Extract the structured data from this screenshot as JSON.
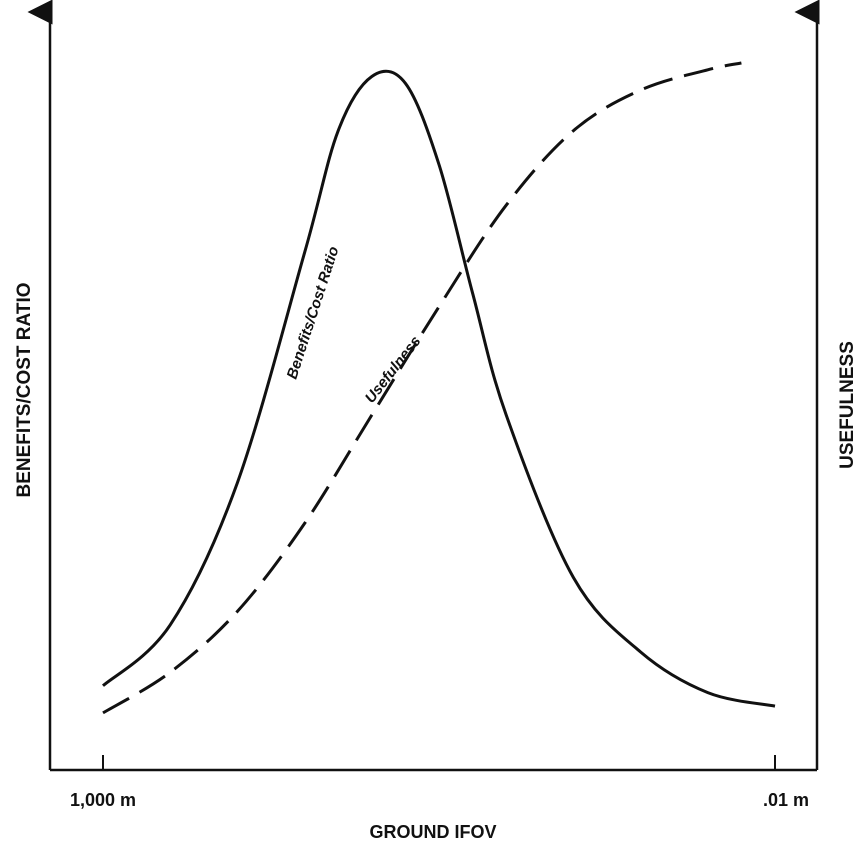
{
  "chart_data": {
    "type": "line",
    "xlabel": "GROUND IFOV",
    "ylabel_left": "BENEFITS/COST RATIO",
    "ylabel_right": "USEFULNESS",
    "x_ticks": [
      "1,000 m",
      ".01 m"
    ],
    "x_scale": "log",
    "x_direction": "decreasing",
    "xlim": [
      "1,000 m",
      ".01 m"
    ],
    "grid": false,
    "legend": "none",
    "units_note": "relative, unlabeled axes (0–1 scale of full axis height)",
    "series": [
      {
        "name": "Benefits/Cost Ratio",
        "style": "solid",
        "x_fraction": [
          0.0,
          0.1,
          0.2,
          0.3,
          0.35,
          0.4,
          0.45,
          0.5,
          0.55,
          0.6,
          0.7,
          0.8,
          0.9,
          1.0
        ],
        "values": [
          0.08,
          0.17,
          0.38,
          0.72,
          0.9,
          0.98,
          0.97,
          0.85,
          0.66,
          0.48,
          0.24,
          0.13,
          0.07,
          0.05
        ]
      },
      {
        "name": "Usefulness",
        "style": "dashed",
        "x_fraction": [
          0.0,
          0.1,
          0.2,
          0.3,
          0.4,
          0.5,
          0.6,
          0.7,
          0.8,
          0.9,
          0.95
        ],
        "values": [
          0.04,
          0.1,
          0.19,
          0.32,
          0.48,
          0.64,
          0.79,
          0.9,
          0.96,
          0.99,
          1.0
        ]
      }
    ]
  }
}
